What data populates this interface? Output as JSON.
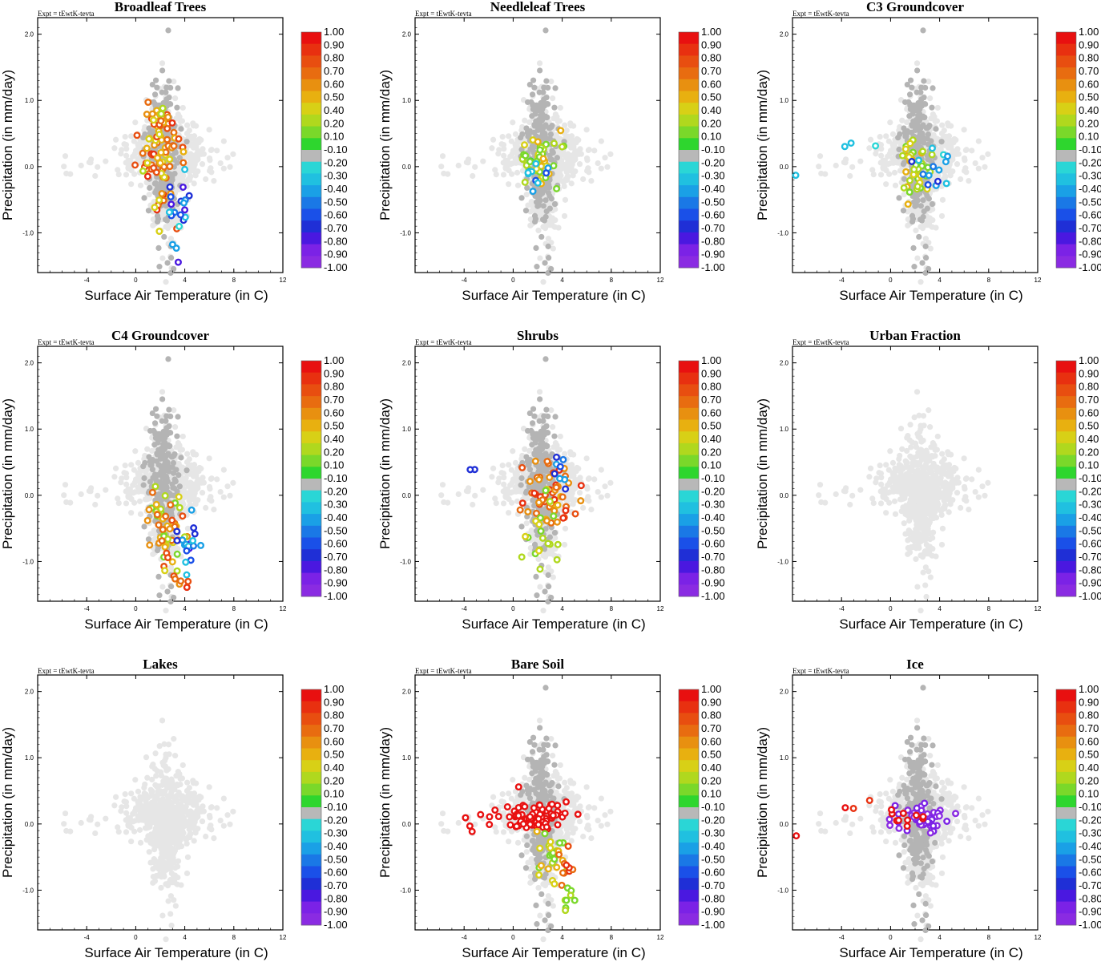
{
  "figure": {
    "expt_label": "Expt = tEwtK-tevta",
    "xlabel": "Surface Air Temperature (in C)",
    "ylabel": "Precipitation (in mm/day)"
  },
  "colors": {
    "bins": [
      "#8a2be2",
      "#7b22e6",
      "#4a18e0",
      "#1f2fd6",
      "#1a50e8",
      "#1a78e6",
      "#1aa0e6",
      "#20c0e0",
      "#2ad6d6",
      "#b8b8b8",
      "#2ed62e",
      "#7ad82a",
      "#b0d81e",
      "#d8d016",
      "#e8b010",
      "#e89010",
      "#e86c10",
      "#e84e10",
      "#e83010",
      "#e81010"
    ],
    "background_point": "#e6e6e6",
    "mid_point": "#b4b4b4"
  },
  "chart_data": [
    {
      "type": "scatter",
      "title": "Broadleaf Trees",
      "xlabel": "Surface Air Temperature (in C)",
      "ylabel": "Precipitation (in mm/day)",
      "xlim": [
        -8,
        12
      ],
      "ylim": [
        -1.6,
        2.25
      ],
      "xticks": [
        "-4",
        "0",
        "4",
        "8",
        "12"
      ],
      "yticks": [
        "-1.0",
        "0.0",
        "1.0",
        "2.0"
      ],
      "colorbar_labels": [
        "1.00",
        "0.90",
        "0.80",
        "0.70",
        "0.60",
        "0.50",
        "0.40",
        "0.20",
        "0.10",
        "-0.10",
        "-0.20",
        "-0.30",
        "-0.40",
        "-0.50",
        "-0.60",
        "-0.70",
        "-0.80",
        "-0.90",
        "-1.00"
      ],
      "regions": [
        {
          "cx": 2.0,
          "cy": 0.25,
          "sx": 0.9,
          "sy": 0.45,
          "n": 90,
          "c_min": 0.3,
          "c_max": 0.9,
          "seed": 11
        },
        {
          "cx": 3.5,
          "cy": -0.8,
          "sx": 0.6,
          "sy": 0.3,
          "n": 22,
          "c_min": -0.9,
          "c_max": -0.2,
          "seed": 12
        }
      ]
    },
    {
      "type": "scatter",
      "title": "Needleleaf Trees",
      "xlabel": "Surface Air Temperature (in C)",
      "ylabel": "Precipitation (in mm/day)",
      "xlim": [
        -8,
        12
      ],
      "ylim": [
        -1.6,
        2.25
      ],
      "xticks": [
        "-4",
        "0",
        "4",
        "8",
        "12"
      ],
      "yticks": [
        "-1.0",
        "0.0",
        "1.0",
        "2.0"
      ],
      "colorbar_labels": [
        "1.00",
        "0.90",
        "0.80",
        "0.70",
        "0.60",
        "0.50",
        "0.40",
        "0.20",
        "0.10",
        "-0.10",
        "-0.20",
        "-0.30",
        "-0.40",
        "-0.50",
        "-0.60",
        "-0.70",
        "-0.80",
        "-0.90",
        "-1.00"
      ],
      "regions": [
        {
          "cx": 2.2,
          "cy": 0.1,
          "sx": 0.8,
          "sy": 0.2,
          "n": 45,
          "c_min": 0.1,
          "c_max": 0.5,
          "seed": 21
        },
        {
          "cx": 1.5,
          "cy": -0.05,
          "sx": 0.4,
          "sy": 0.15,
          "n": 10,
          "c_min": -0.6,
          "c_max": -0.2,
          "seed": 22
        }
      ]
    },
    {
      "type": "scatter",
      "title": "C3 Groundcover",
      "xlabel": "Surface Air Temperature (in C)",
      "ylabel": "Precipitation (in mm/day)",
      "xlim": [
        -8,
        12
      ],
      "ylim": [
        -1.6,
        2.25
      ],
      "xticks": [
        "-4",
        "0",
        "4",
        "8",
        "12"
      ],
      "yticks": [
        "-1.0",
        "0.0",
        "1.0",
        "2.0"
      ],
      "colorbar_labels": [
        "1.00",
        "0.90",
        "0.80",
        "0.70",
        "0.60",
        "0.50",
        "0.40",
        "0.20",
        "0.10",
        "-0.10",
        "-0.20",
        "-0.30",
        "-0.40",
        "-0.50",
        "-0.60",
        "-0.70",
        "-0.80",
        "-0.90",
        "-1.00"
      ],
      "regions": [
        {
          "cx": 2.0,
          "cy": -0.05,
          "sx": 0.6,
          "sy": 0.25,
          "n": 40,
          "c_min": 0.1,
          "c_max": 0.5,
          "seed": 31
        },
        {
          "cx": 3.5,
          "cy": 0.0,
          "sx": 0.8,
          "sy": 0.2,
          "n": 14,
          "c_min": -0.7,
          "c_max": -0.2,
          "seed": 32
        },
        {
          "cx": -3.0,
          "cy": 0.3,
          "sx": 0.8,
          "sy": 0.04,
          "n": 3,
          "c_min": -0.3,
          "c_max": -0.2,
          "seed": 33
        },
        {
          "cx": -7.7,
          "cy": -0.15,
          "sx": 0.05,
          "sy": 0.02,
          "n": 1,
          "c_min": -0.3,
          "c_max": -0.3,
          "seed": 34
        }
      ]
    },
    {
      "type": "scatter",
      "title": "C4 Groundcover",
      "xlabel": "Surface Air Temperature (in C)",
      "ylabel": "Precipitation (in mm/day)",
      "xlim": [
        -8,
        12
      ],
      "ylim": [
        -1.6,
        2.25
      ],
      "xticks": [
        "-4",
        "0",
        "4",
        "8",
        "12"
      ],
      "yticks": [
        "-1.0",
        "0.0",
        "1.0",
        "2.0"
      ],
      "colorbar_labels": [
        "1.00",
        "0.90",
        "0.80",
        "0.70",
        "0.60",
        "0.50",
        "0.40",
        "0.20",
        "0.10",
        "-0.10",
        "-0.20",
        "-0.30",
        "-0.40",
        "-0.50",
        "-0.60",
        "-0.70",
        "-0.80",
        "-0.90",
        "-1.00"
      ],
      "regions": [
        {
          "cx": 2.5,
          "cy": -0.5,
          "sx": 0.8,
          "sy": 0.4,
          "n": 55,
          "c_min": 0.1,
          "c_max": 0.8,
          "seed": 41
        },
        {
          "cx": 4.2,
          "cy": -0.7,
          "sx": 0.5,
          "sy": 0.25,
          "n": 18,
          "c_min": -0.8,
          "c_max": -0.2,
          "seed": 42
        },
        {
          "cx": 3.8,
          "cy": -1.3,
          "sx": 0.4,
          "sy": 0.1,
          "n": 6,
          "c_min": 0.6,
          "c_max": 0.9,
          "seed": 43
        }
      ]
    },
    {
      "type": "scatter",
      "title": "Shrubs",
      "xlabel": "Surface Air Temperature (in C)",
      "ylabel": "Precipitation (in mm/day)",
      "xlim": [
        -8,
        12
      ],
      "ylim": [
        -1.6,
        2.25
      ],
      "xticks": [
        "-4",
        "0",
        "4",
        "8",
        "12"
      ],
      "yticks": [
        "-1.0",
        "0.0",
        "1.0",
        "2.0"
      ],
      "colorbar_labels": [
        "1.00",
        "0.90",
        "0.80",
        "0.70",
        "0.60",
        "0.50",
        "0.40",
        "0.20",
        "0.10",
        "-0.10",
        "-0.20",
        "-0.30",
        "-0.40",
        "-0.50",
        "-0.60",
        "-0.70",
        "-0.80",
        "-0.90",
        "-1.00"
      ],
      "regions": [
        {
          "cx": 3.0,
          "cy": 0.05,
          "sx": 1.0,
          "sy": 0.2,
          "n": 55,
          "c_min": 0.5,
          "c_max": 0.9,
          "seed": 51
        },
        {
          "cx": 2.5,
          "cy": -0.5,
          "sx": 0.8,
          "sy": 0.35,
          "n": 20,
          "c_min": 0.1,
          "c_max": 0.4,
          "seed": 52
        },
        {
          "cx": 3.8,
          "cy": 0.4,
          "sx": 0.4,
          "sy": 0.2,
          "n": 8,
          "c_min": -0.7,
          "c_max": -0.3,
          "seed": 53
        },
        {
          "cx": -3.4,
          "cy": 0.34,
          "sx": 0.4,
          "sy": 0.03,
          "n": 2,
          "c_min": -0.8,
          "c_max": -0.7,
          "seed": 54
        }
      ]
    },
    {
      "type": "scatter",
      "title": "Urban Fraction",
      "xlabel": "Surface Air Temperature (in C)",
      "ylabel": "Precipitation (in mm/day)",
      "xlim": [
        -8,
        12
      ],
      "ylim": [
        -1.6,
        2.25
      ],
      "xticks": [
        "-4",
        "0",
        "4",
        "8",
        "12"
      ],
      "yticks": [
        "-1.0",
        "0.0",
        "1.0",
        "2.0"
      ],
      "colorbar_labels": [
        "1.00",
        "0.90",
        "0.80",
        "0.70",
        "0.60",
        "0.50",
        "0.40",
        "0.20",
        "0.10",
        "-0.10",
        "-0.20",
        "-0.30",
        "-0.40",
        "-0.50",
        "-0.60",
        "-0.70",
        "-0.80",
        "-0.90",
        "-1.00"
      ],
      "regions": []
    },
    {
      "type": "scatter",
      "title": "Lakes",
      "xlabel": "Surface Air Temperature (in C)",
      "ylabel": "Precipitation (in mm/day)",
      "xlim": [
        -8,
        12
      ],
      "ylim": [
        -1.6,
        2.25
      ],
      "xticks": [
        "-4",
        "0",
        "4",
        "8",
        "12"
      ],
      "yticks": [
        "-1.0",
        "0.0",
        "1.0",
        "2.0"
      ],
      "colorbar_labels": [
        "1.00",
        "0.90",
        "0.80",
        "0.70",
        "0.60",
        "0.50",
        "0.40",
        "0.20",
        "0.10",
        "-0.10",
        "-0.20",
        "-0.30",
        "-0.40",
        "-0.50",
        "-0.60",
        "-0.70",
        "-0.80",
        "-0.90",
        "-1.00"
      ],
      "regions": []
    },
    {
      "type": "scatter",
      "title": "Bare Soil",
      "xlabel": "Surface Air Temperature (in C)",
      "ylabel": "Precipitation (in mm/day)",
      "xlim": [
        -8,
        12
      ],
      "ylim": [
        -1.6,
        2.25
      ],
      "xticks": [
        "-4",
        "0",
        "4",
        "8",
        "12"
      ],
      "yticks": [
        "-1.0",
        "0.0",
        "1.0",
        "2.0"
      ],
      "colorbar_labels": [
        "1.00",
        "0.90",
        "0.80",
        "0.70",
        "0.60",
        "0.50",
        "0.40",
        "0.20",
        "0.10",
        "-0.10",
        "-0.20",
        "-0.30",
        "-0.40",
        "-0.50",
        "-0.60",
        "-0.70",
        "-0.80",
        "-0.90",
        "-1.00"
      ],
      "regions": [
        {
          "cx": 2.0,
          "cy": 0.12,
          "sx": 1.3,
          "sy": 0.1,
          "n": 70,
          "c_min": 0.95,
          "c_max": 1.0,
          "seed": 81
        },
        {
          "cx": -2.0,
          "cy": 0.1,
          "sx": 1.2,
          "sy": 0.1,
          "n": 8,
          "c_min": 0.95,
          "c_max": 1.0,
          "seed": 82
        },
        {
          "cx": 3.2,
          "cy": -0.5,
          "sx": 0.7,
          "sy": 0.25,
          "n": 25,
          "c_min": 0.1,
          "c_max": 0.5,
          "seed": 83
        },
        {
          "cx": 4.5,
          "cy": -0.7,
          "sx": 0.4,
          "sy": 0.2,
          "n": 10,
          "c_min": 0.6,
          "c_max": 0.9,
          "seed": 84
        },
        {
          "cx": 4.5,
          "cy": -1.1,
          "sx": 0.4,
          "sy": 0.15,
          "n": 8,
          "c_min": 0.1,
          "c_max": 0.3,
          "seed": 85
        }
      ]
    },
    {
      "type": "scatter",
      "title": "Ice",
      "xlabel": "Surface Air Temperature (in C)",
      "ylabel": "Precipitation (in mm/day)",
      "xlim": [
        -8,
        12
      ],
      "ylim": [
        -1.6,
        2.25
      ],
      "xticks": [
        "-4",
        "0",
        "4",
        "8",
        "12"
      ],
      "yticks": [
        "-1.0",
        "0.0",
        "1.0",
        "2.0"
      ],
      "colorbar_labels": [
        "1.00",
        "0.90",
        "0.80",
        "0.70",
        "0.60",
        "0.50",
        "0.40",
        "0.20",
        "0.10",
        "-0.10",
        "-0.20",
        "-0.30",
        "-0.40",
        "-0.50",
        "-0.60",
        "-0.70",
        "-0.80",
        "-0.90",
        "-1.00"
      ],
      "regions": [
        {
          "cx": 2.5,
          "cy": 0.08,
          "sx": 1.2,
          "sy": 0.12,
          "n": 45,
          "c_min": -1.0,
          "c_max": -0.9,
          "seed": 91
        },
        {
          "cx": 1.5,
          "cy": 0.1,
          "sx": 1.0,
          "sy": 0.08,
          "n": 10,
          "c_min": 0.95,
          "c_max": 1.0,
          "seed": 92
        },
        {
          "cx": -3.0,
          "cy": 0.3,
          "sx": 0.7,
          "sy": 0.05,
          "n": 3,
          "c_min": 0.9,
          "c_max": 1.0,
          "seed": 93
        },
        {
          "cx": -7.7,
          "cy": -0.15,
          "sx": 0.05,
          "sy": 0.02,
          "n": 1,
          "c_min": 1.0,
          "c_max": 1.0,
          "seed": 94
        }
      ]
    }
  ]
}
